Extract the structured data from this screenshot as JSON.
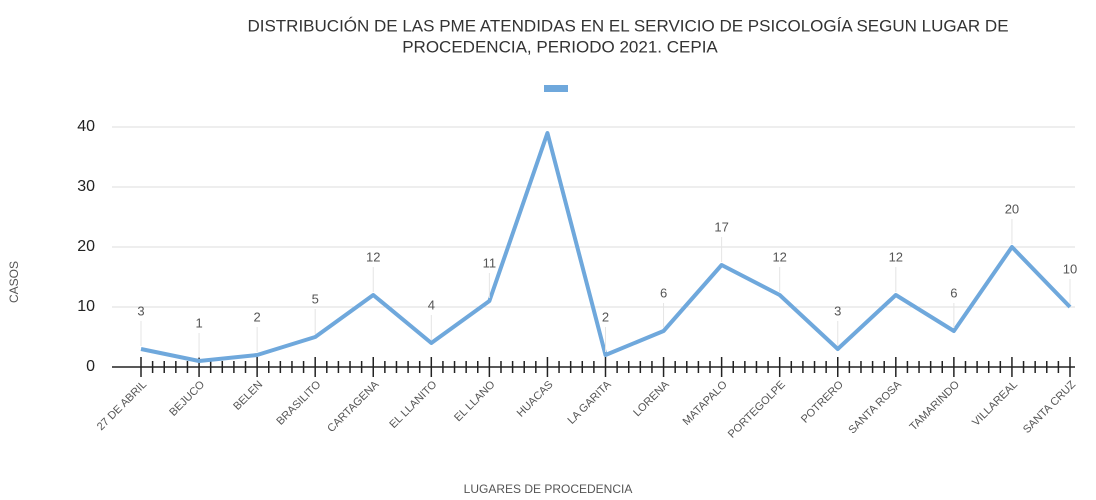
{
  "chart_data": {
    "type": "line",
    "title": [
      "DISTRIBUCIÓN DE LAS PME ATENDIDAS EN EL SERVICIO DE PSICOLOGÍA SEGUN LUGAR DE",
      "PROCEDENCIA, PERIODO  2021. CEPIA"
    ],
    "x_label": "LUGARES DE PROCEDENCIA",
    "y_label": "CASOS",
    "categories": [
      "27 DE ABRIL",
      "BEJUCO",
      "BELEN",
      "BRASILITO",
      "CARTAGENA",
      "EL LLANITO",
      "EL LLANO",
      "HUACAS",
      "LA GARITA",
      "LORENA",
      "MATAPALO",
      "PORTEGOLPE",
      "POTRERO",
      "SANTA ROSA",
      "TAMARINDO",
      "VILLAREAL",
      "SANTA CRUZ"
    ],
    "values": [
      3,
      1,
      2,
      5,
      12,
      4,
      11,
      39,
      2,
      6,
      17,
      12,
      3,
      12,
      6,
      20,
      10
    ],
    "value_labels": [
      "3",
      "1",
      "2",
      "5",
      "12",
      "4",
      "11",
      null,
      "2",
      "6",
      "17",
      "12",
      "3",
      "12",
      "6",
      "20",
      "10"
    ],
    "color": "#6fa8dc",
    "ylim": [
      0,
      40
    ],
    "yticks": [
      0,
      10,
      20,
      30,
      40
    ],
    "grid": true,
    "legend": "top"
  }
}
